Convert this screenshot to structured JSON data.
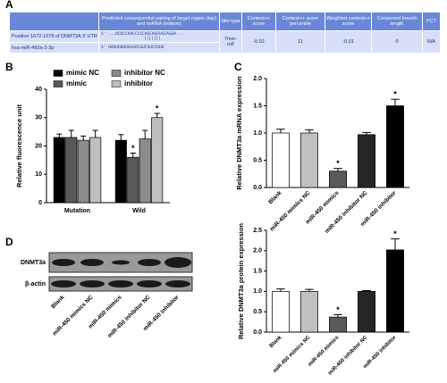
{
  "panels": [
    "A",
    "B",
    "C",
    "D"
  ],
  "panel_a": {
    "header": [
      "Predicted consequential pairing of target region (top) and miRNA (bottom)",
      "Site type",
      "Context++ score",
      "Context++ score percentile",
      "Weighted context++ score",
      "Conserved branch length",
      "PCT"
    ],
    "rows": [
      [
        "Position 1672-1678 of DNMT3A 3' UTR",
        "5' ...UCUCCAUCCCCCAGCAGCUGCAGGA...",
        "7mer-m8",
        "-0.02",
        "11",
        "-0.01",
        "0",
        "N/A"
      ],
      [
        "hsa-miR-450a-2-3p",
        "3' UAUUGUUUGGAACGUCGUCCUUU"
      ]
    ],
    "pairing": "|||||||"
  },
  "blot": {
    "rows": [
      "DNMT3a",
      "β-actin"
    ],
    "lanes": [
      "Blank",
      "miR-450 mimics NC",
      "miR-450 mimics",
      "miR-450 inhibitor NC",
      "miR-450 inhibitor"
    ]
  },
  "chart_data": [
    {
      "type": "bar",
      "ylabel": "Relative fluorescence unit",
      "categories": [
        "Mutation",
        "Wild"
      ],
      "series": [
        {
          "name": "mimic NC",
          "color": "#000000",
          "values": [
            23,
            22
          ],
          "errors": [
            1.2,
            2.0
          ],
          "significance": [
            null,
            null
          ]
        },
        {
          "name": "mimic",
          "color": "#595959",
          "values": [
            23,
            16
          ],
          "errors": [
            2.5,
            1.5
          ],
          "significance": [
            null,
            "*"
          ]
        },
        {
          "name": "inhibitor NC",
          "color": "#8c8c8c",
          "values": [
            22,
            22.5
          ],
          "errors": [
            1.5,
            3
          ],
          "significance": [
            null,
            null
          ]
        },
        {
          "name": "inhibitor",
          "color": "#bfbfbf",
          "values": [
            23,
            30
          ],
          "errors": [
            2.5,
            1.5
          ],
          "significance": [
            null,
            "*"
          ]
        }
      ],
      "ylim": [
        0,
        40
      ],
      "yticks": [
        0,
        10,
        20,
        30,
        40
      ],
      "legend": "top"
    },
    {
      "type": "bar",
      "ylabel": "Relative DNMT3a mRNA expression",
      "categories": [
        "Blank",
        "miR-450 mimics NC",
        "miR-450 mimics",
        "miR-450 inhibitor NC",
        "miR-450 inhibitor"
      ],
      "values": [
        1.0,
        1.0,
        0.3,
        0.97,
        1.5
      ],
      "errors": [
        0.07,
        0.06,
        0.05,
        0.04,
        0.12
      ],
      "significance": [
        null,
        null,
        "*",
        null,
        "*"
      ],
      "colors": [
        "#ffffff",
        "#c0c0c0",
        "#595959",
        "#262626",
        "#000000"
      ],
      "ylim": [
        0,
        2
      ],
      "yticks": [
        {
          "value": 0,
          "label": "0.0"
        },
        0.5,
        {
          "value": 1,
          "label": "1.0"
        },
        1.5,
        {
          "value": 2,
          "label": "2.0"
        }
      ]
    },
    {
      "type": "bar",
      "ylabel": "Relative DNMT3a protein expression",
      "categories": [
        "Blank",
        "miR-450 mimics NC",
        "miR-450 mimics",
        "miR-450 inhibitor NC",
        "miR-450 inhibitor"
      ],
      "values": [
        1.0,
        1.0,
        0.37,
        1.0,
        2.02
      ],
      "errors": [
        0.06,
        0.05,
        0.06,
        0.02,
        0.27
      ],
      "significance": [
        null,
        null,
        "*",
        null,
        "*"
      ],
      "colors": [
        "#ffffff",
        "#c0c0c0",
        "#595959",
        "#262626",
        "#000000"
      ],
      "ylim": [
        0,
        2.5
      ],
      "yticks": [
        {
          "value": 0,
          "label": "0.0"
        },
        0.5,
        {
          "value": 1,
          "label": "1.0"
        },
        1.5,
        {
          "value": 2,
          "label": "2.0"
        },
        2.5
      ]
    }
  ]
}
